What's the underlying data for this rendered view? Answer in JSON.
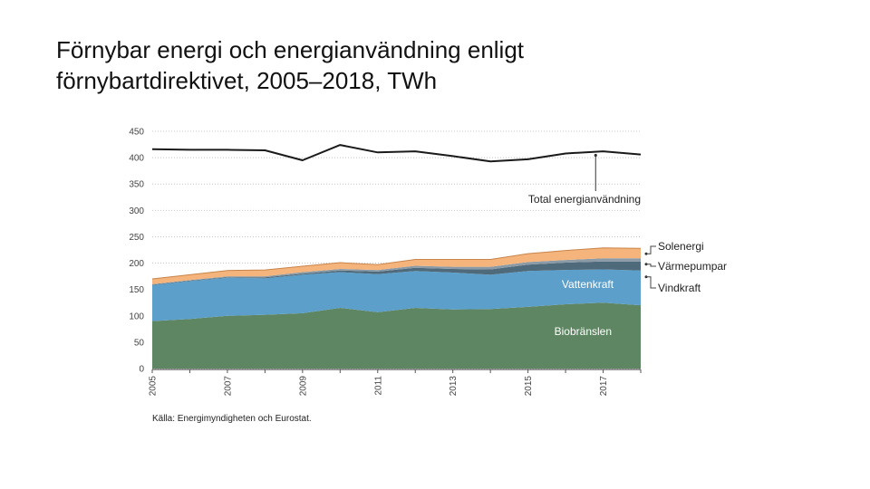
{
  "slide": {
    "title_line1": "Förnybar energi och energianvändning enligt",
    "title_line2": "förnybartdirektivet, 2005–2018, TWh"
  },
  "chart_data": {
    "type": "area",
    "stacked": true,
    "x": [
      2005,
      2006,
      2007,
      2008,
      2009,
      2010,
      2011,
      2012,
      2013,
      2014,
      2015,
      2016,
      2017,
      2018
    ],
    "xticks": [
      "2005",
      "2007",
      "2009",
      "2011",
      "2013",
      "2015",
      "2017"
    ],
    "ylim": [
      0,
      450
    ],
    "yticks": [
      0,
      50,
      100,
      150,
      200,
      250,
      300,
      350,
      400,
      450
    ],
    "series": [
      {
        "name": "Biobränslen",
        "color": "#5e8662",
        "label_color": "#ffffff",
        "label_x": 2015.7,
        "label_y": 70,
        "values": [
          90,
          94,
          100,
          102,
          105,
          115,
          107,
          115,
          112,
          113,
          117,
          122,
          125,
          120
        ]
      },
      {
        "name": "Vattenkraft",
        "color": "#5c9fca",
        "label_color": "#ffffff",
        "label_x": 2015.9,
        "label_y": 160,
        "values": [
          68,
          72,
          72,
          69,
          73,
          68,
          72,
          70,
          70,
          65,
          68,
          65,
          63,
          66
        ]
      },
      {
        "name": "Vindkraft",
        "color": "#4f6a7a",
        "values": [
          1,
          1,
          1,
          2,
          2,
          3,
          5,
          6,
          7,
          10,
          12,
          14,
          15,
          17
        ]
      },
      {
        "name": "Värmepumpar",
        "color": "#8a9aa6",
        "values": [
          1,
          1,
          2,
          2,
          3,
          3,
          3,
          4,
          4,
          5,
          5,
          5,
          6,
          6
        ]
      },
      {
        "name": "Solenergi",
        "color": "#f4b47c",
        "values": [
          10,
          10,
          11,
          12,
          11,
          12,
          10,
          12,
          14,
          14,
          16,
          18,
          20,
          19
        ]
      }
    ],
    "line_series": {
      "name": "Total energianvändning",
      "color": "#1a1a1a",
      "values": [
        416,
        415,
        415,
        414,
        395,
        424,
        410,
        412,
        403,
        393,
        397,
        408,
        412,
        406
      ]
    },
    "annotation": {
      "text": "Total energianvändning",
      "x": 2016.8,
      "y": 408
    },
    "legend": {
      "placement": "right",
      "items": [
        "Solenergi",
        "Värmepumpar",
        "Vindkraft"
      ]
    },
    "source": "Källa: Energimyndigheten och Eurostat."
  }
}
